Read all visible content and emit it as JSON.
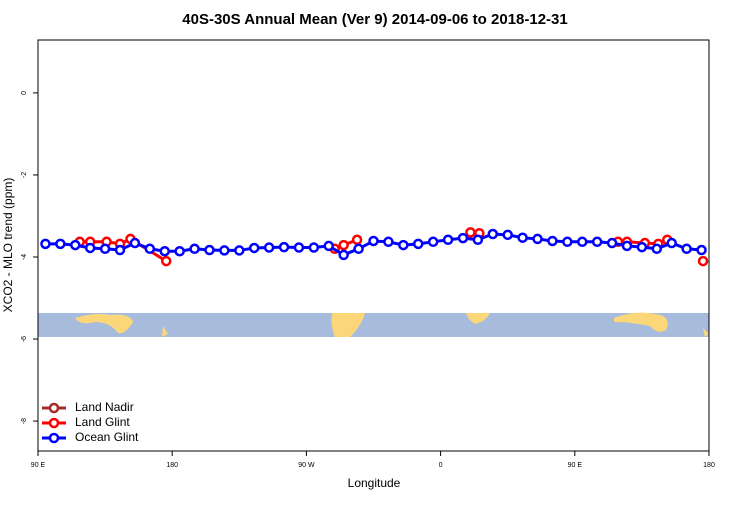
{
  "chart_data": {
    "type": "line",
    "title": "40S-30S Annual Mean (Ver 9)   2014-09-06 to 2018-12-31",
    "x_label": "Longitude",
    "y_label": "XCO2 - MLO trend (ppm)",
    "xlim": [
      90,
      540
    ],
    "ylim": [
      -8.73,
      1.29
    ],
    "xticks": [
      {
        "value": 90,
        "label": "90 E"
      },
      180,
      {
        "value": 270,
        "label": "90 W"
      },
      {
        "value": 360,
        "label": "0"
      },
      {
        "value": 450,
        "label": "90 E"
      },
      {
        "value": 540,
        "label": "180"
      }
    ],
    "yticks": [
      0,
      -2,
      -4,
      -6,
      -8
    ],
    "legend": "bottom-left",
    "series": [
      {
        "name": "Land Nadir",
        "color": "#a52a2a",
        "x": [],
        "values": []
      },
      {
        "name": "Land Glint",
        "color": "#ff0000",
        "x": [
          118,
          125,
          136,
          145,
          152,
          176,
          230,
          289,
          295,
          304,
          340,
          380,
          386,
          430,
          479,
          485,
          497,
          506,
          512,
          524,
          536
        ],
        "values": [
          -3.63,
          -3.63,
          -3.63,
          -3.68,
          -3.56,
          -4.1,
          null,
          -3.8,
          -3.71,
          -3.58,
          null,
          -3.4,
          -3.42,
          null,
          -3.63,
          -3.63,
          -3.66,
          -3.68,
          -3.58,
          null,
          -4.1
        ]
      },
      {
        "name": "Ocean Glint",
        "color": "#0000ff",
        "x": [
          95,
          105,
          115,
          125,
          135,
          145,
          155,
          165,
          175,
          185,
          195,
          205,
          215,
          225,
          235,
          245,
          255,
          265,
          275,
          285,
          295,
          305,
          315,
          325,
          335,
          345,
          355,
          365,
          375,
          385,
          395,
          405,
          415,
          425,
          435,
          445,
          455,
          465,
          475,
          485,
          495,
          505,
          515,
          525,
          535
        ],
        "values": [
          -3.68,
          -3.68,
          -3.71,
          -3.78,
          -3.8,
          -3.83,
          -3.66,
          -3.8,
          -3.86,
          -3.86,
          -3.8,
          -3.83,
          -3.84,
          -3.84,
          -3.78,
          -3.77,
          -3.76,
          -3.77,
          -3.77,
          -3.73,
          -3.95,
          -3.8,
          -3.61,
          -3.63,
          -3.71,
          -3.68,
          -3.63,
          -3.58,
          -3.54,
          -3.58,
          -3.44,
          -3.46,
          -3.53,
          -3.56,
          -3.61,
          -3.63,
          -3.63,
          -3.63,
          -3.66,
          -3.73,
          -3.76,
          -3.8,
          -3.66,
          -3.8,
          -3.83
        ]
      }
    ]
  }
}
